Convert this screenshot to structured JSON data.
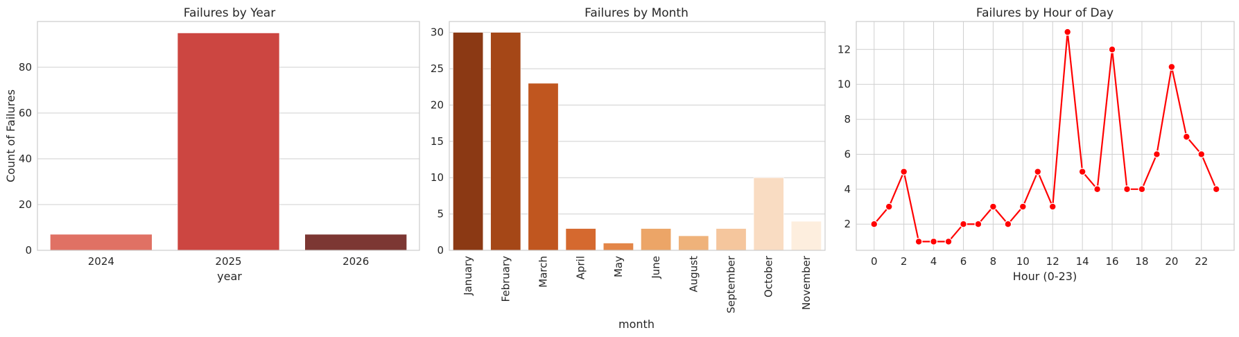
{
  "chart_data": [
    {
      "type": "bar",
      "title": "Failures by Year",
      "xlabel": "year",
      "ylabel": "Count of Failures",
      "categories": [
        "2024",
        "2025",
        "2026"
      ],
      "values": [
        7,
        95,
        7
      ],
      "colors": [
        "#e07164",
        "#cc4641",
        "#7c3733"
      ],
      "ylim": [
        0,
        100
      ],
      "yticks": [
        0,
        20,
        40,
        60,
        80
      ],
      "grid": "y"
    },
    {
      "type": "bar",
      "title": "Failures by Month",
      "xlabel": "month",
      "ylabel": "",
      "categories": [
        "January",
        "February",
        "March",
        "April",
        "May",
        "June",
        "August",
        "September",
        "October",
        "November"
      ],
      "values": [
        30,
        30,
        23,
        3,
        1,
        3,
        2,
        3,
        10,
        4
      ],
      "colors": [
        "#8b3914",
        "#a54717",
        "#c0561f",
        "#d5692f",
        "#e38648",
        "#eca567",
        "#efb27a",
        "#f5c69d",
        "#f9dcc2",
        "#fdeede"
      ],
      "ylim": [
        0,
        31.5
      ],
      "yticks": [
        0,
        5,
        10,
        15,
        20,
        25,
        30
      ],
      "grid": "y"
    },
    {
      "type": "line",
      "title": "Failures by Hour of Day",
      "xlabel": "Hour (0-23)",
      "ylabel": "",
      "x": [
        0,
        1,
        2,
        3,
        4,
        5,
        6,
        7,
        8,
        9,
        10,
        11,
        12,
        13,
        14,
        15,
        16,
        17,
        18,
        19,
        20,
        21,
        22,
        23
      ],
      "series": [
        {
          "values": [
            2,
            3,
            5,
            1,
            1,
            1,
            2,
            2,
            3,
            2,
            3,
            5,
            3,
            13,
            5,
            4,
            12,
            4,
            4,
            6,
            11,
            7,
            6,
            4
          ],
          "color": "#ff0000"
        }
      ],
      "xlim": [
        -1.2,
        24.2
      ],
      "ylim": [
        0.5,
        13.6
      ],
      "xticks": [
        0,
        2,
        4,
        6,
        8,
        10,
        12,
        14,
        16,
        18,
        20,
        22
      ],
      "yticks": [
        2,
        4,
        6,
        8,
        10,
        12
      ],
      "grid": "both"
    }
  ]
}
